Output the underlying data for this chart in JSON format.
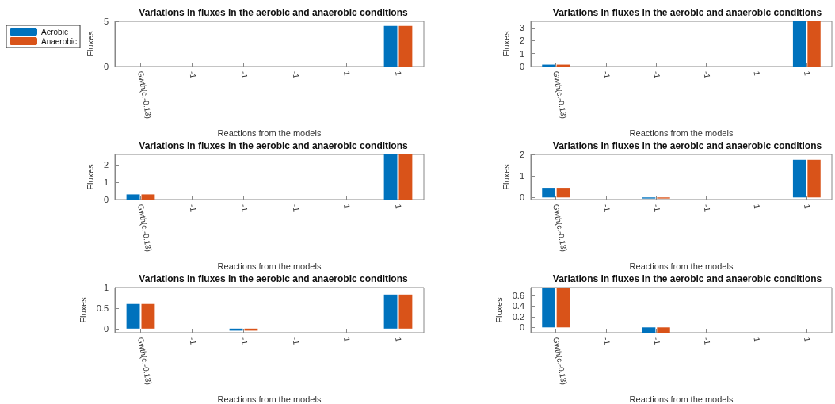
{
  "chart_data": [
    {
      "type": "bar",
      "title": "Variations in fluxes in the aerobic and anaerobic conditions",
      "xlabel": "Reactions from the models",
      "ylabel": "Fluxes",
      "categories": [
        "Gwth(c.-0.13)",
        "-1",
        "-1",
        "-1",
        "1",
        "1"
      ],
      "legend": "left",
      "grid": false,
      "ylim": [
        0,
        5
      ],
      "yticks": [
        0,
        5
      ],
      "series": [
        {
          "name": "Aerobic",
          "color": "#0072bd",
          "values": [
            0,
            0,
            0,
            0,
            0,
            4.5
          ]
        },
        {
          "name": "Anaerobic",
          "color": "#d95319",
          "values": [
            0,
            0,
            0,
            0,
            0,
            4.5
          ]
        }
      ]
    },
    {
      "type": "bar",
      "title": "Variations in fluxes in the aerobic and anaerobic conditions",
      "xlabel": "Reactions from the models",
      "ylabel": "Fluxes",
      "categories": [
        "Gwth(c.-0.13)",
        "-1",
        "-1",
        "-1",
        "1",
        "1"
      ],
      "grid": false,
      "ylim": [
        0,
        3.5
      ],
      "yticks": [
        0,
        1,
        2,
        3
      ],
      "series": [
        {
          "color": "#0072bd",
          "values": [
            0.15,
            0,
            0,
            0,
            0,
            3.5
          ]
        },
        {
          "color": "#d95319",
          "values": [
            0.15,
            0,
            0,
            0,
            0,
            3.5
          ]
        }
      ]
    },
    {
      "type": "bar",
      "title": "Variations in fluxes in the aerobic and anaerobic conditions",
      "xlabel": "Reactions from the models",
      "ylabel": "Fluxes",
      "categories": [
        "Gwth(c.-0.13)",
        "-1",
        "-1",
        "-1",
        "1",
        "1"
      ],
      "grid": false,
      "ylim": [
        0,
        2.6
      ],
      "yticks": [
        0,
        1,
        2
      ],
      "series": [
        {
          "color": "#0072bd",
          "values": [
            0.3,
            0,
            0,
            0,
            0,
            2.6
          ]
        },
        {
          "color": "#d95319",
          "values": [
            0.3,
            0,
            0,
            0,
            0,
            2.6
          ]
        }
      ]
    },
    {
      "type": "bar",
      "title": "Variations in fluxes in the aerobic and anaerobic conditions",
      "xlabel": "Reactions from the models",
      "ylabel": "Fluxes",
      "categories": [
        "Gwth(c.-0.13)",
        "-1",
        "-1",
        "-1",
        "1",
        "1"
      ],
      "grid": false,
      "ylim": [
        -0.1,
        2
      ],
      "yticks": [
        0,
        1,
        2
      ],
      "series": [
        {
          "color": "#0072bd",
          "values": [
            0.45,
            0,
            -0.05,
            0,
            0,
            1.75
          ]
        },
        {
          "color": "#d95319",
          "values": [
            0.45,
            0,
            -0.05,
            0,
            0,
            1.75
          ]
        }
      ]
    },
    {
      "type": "bar",
      "title": "Variations in fluxes in the aerobic and anaerobic conditions",
      "xlabel": "Reactions from the models",
      "ylabel": "Fluxes",
      "categories": [
        "Gwth(c.-0.13)",
        "-1",
        "-1",
        "-1",
        "1",
        "1"
      ],
      "grid": false,
      "ylim": [
        -0.1,
        1
      ],
      "yticks": [
        0,
        0.5,
        1
      ],
      "series": [
        {
          "color": "#0072bd",
          "values": [
            0.6,
            0,
            -0.05,
            0,
            0,
            0.83
          ]
        },
        {
          "color": "#d95319",
          "values": [
            0.6,
            0,
            -0.05,
            0,
            0,
            0.83
          ]
        }
      ]
    },
    {
      "type": "bar",
      "title": "Variations in fluxes in the aerobic and anaerobic conditions",
      "xlabel": "Reactions from the models",
      "ylabel": "Fluxes",
      "categories": [
        "Gwth(c.-0.13)",
        "-1",
        "-1",
        "-1",
        "1",
        "1"
      ],
      "grid": false,
      "ylim": [
        -0.1,
        0.75
      ],
      "yticks": [
        0,
        0.2,
        0.4,
        0.6
      ],
      "series": [
        {
          "color": "#0072bd",
          "values": [
            0.75,
            0,
            -0.1,
            0,
            0,
            0
          ]
        },
        {
          "color": "#d95319",
          "values": [
            0.75,
            0,
            -0.1,
            0,
            0,
            0
          ]
        }
      ]
    }
  ]
}
